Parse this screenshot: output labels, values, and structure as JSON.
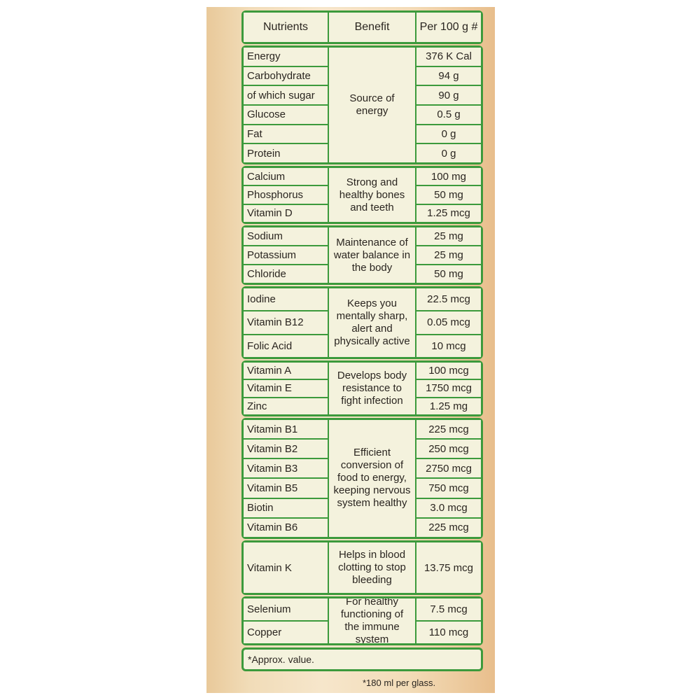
{
  "table": {
    "header": [
      "Nutrients",
      "Benefit",
      "Per 100 g #"
    ],
    "groups": [
      {
        "benefit": "Source of energy",
        "rows": [
          {
            "nutrient": "Energy",
            "amount": "376 K Cal"
          },
          {
            "nutrient": "Carbohydrate",
            "amount": "94 g"
          },
          {
            "nutrient": "of which sugar",
            "amount": "90 g"
          },
          {
            "nutrient": "Glucose",
            "amount": "0.5 g"
          },
          {
            "nutrient": "Fat",
            "amount": "0 g"
          },
          {
            "nutrient": "Protein",
            "amount": "0 g"
          }
        ]
      },
      {
        "benefit": "Strong and healthy bones and teeth",
        "rows": [
          {
            "nutrient": "Calcium",
            "amount": "100 mg"
          },
          {
            "nutrient": "Phosphorus",
            "amount": "50 mg"
          },
          {
            "nutrient": "Vitamin D",
            "amount": "1.25 mcg"
          }
        ]
      },
      {
        "benefit": "Maintenance of water balance in the body",
        "rows": [
          {
            "nutrient": "Sodium",
            "amount": "25 mg"
          },
          {
            "nutrient": "Potassium",
            "amount": "25 mg"
          },
          {
            "nutrient": "Chloride",
            "amount": "50 mg"
          }
        ]
      },
      {
        "benefit": "Keeps you mentally sharp, alert and physically active",
        "rows": [
          {
            "nutrient": "Iodine",
            "amount": "22.5 mcg"
          },
          {
            "nutrient": "Vitamin B12",
            "amount": "0.05 mcg"
          },
          {
            "nutrient": "Folic Acid",
            "amount": "10 mcg"
          }
        ]
      },
      {
        "benefit": "Develops body resistance to fight infection",
        "rows": [
          {
            "nutrient": "Vitamin A",
            "amount": "100 mcg"
          },
          {
            "nutrient": "Vitamin E",
            "amount": "1750 mcg"
          },
          {
            "nutrient": "Zinc",
            "amount": "1.25 mg"
          }
        ]
      },
      {
        "benefit": "Efficient conversion of food to energy, keeping nervous system healthy",
        "rows": [
          {
            "nutrient": "Vitamin B1",
            "amount": "225 mcg"
          },
          {
            "nutrient": "Vitamin B2",
            "amount": "250 mcg"
          },
          {
            "nutrient": "Vitamin B3",
            "amount": "2750 mcg"
          },
          {
            "nutrient": "Vitamin B5",
            "amount": "750 mcg"
          },
          {
            "nutrient": "Biotin",
            "amount": "3.0 mcg"
          },
          {
            "nutrient": "Vitamin B6",
            "amount": "225 mcg"
          }
        ]
      },
      {
        "benefit": "Helps in blood clotting to stop bleeding",
        "rows": [
          {
            "nutrient": "Vitamin K",
            "amount": "13.75 mcg"
          }
        ]
      },
      {
        "benefit": "For healthy functioning of the immune system",
        "rows": [
          {
            "nutrient": "Selenium",
            "amount": "7.5 mcg"
          },
          {
            "nutrient": "Copper",
            "amount": "110 mcg"
          }
        ]
      }
    ],
    "footnote": "*Approx. value.",
    "note": "*180 ml per glass."
  }
}
